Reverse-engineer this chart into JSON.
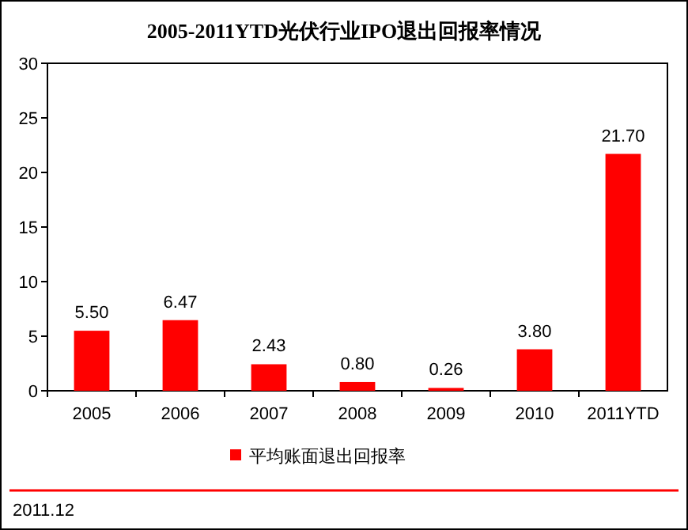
{
  "chart_data": {
    "type": "bar",
    "title": "2005-2011YTD光伏行业IPO退出回报率情况",
    "categories": [
      "2005",
      "2006",
      "2007",
      "2008",
      "2009",
      "2010",
      "2011YTD"
    ],
    "series": [
      {
        "name": "平均账面退出回报率",
        "color": "#ff0000",
        "values": [
          5.5,
          6.47,
          2.43,
          0.8,
          0.26,
          3.8,
          21.7
        ],
        "value_labels": [
          "5.50",
          "6.47",
          "2.43",
          "0.80",
          "0.26",
          "3.80",
          "21.70"
        ]
      }
    ],
    "ylim": [
      0,
      30
    ],
    "yticks": [
      0,
      5,
      10,
      15,
      20,
      25,
      30
    ],
    "grid": false,
    "legend": "bottom",
    "annotations": [
      "2011.12"
    ]
  }
}
